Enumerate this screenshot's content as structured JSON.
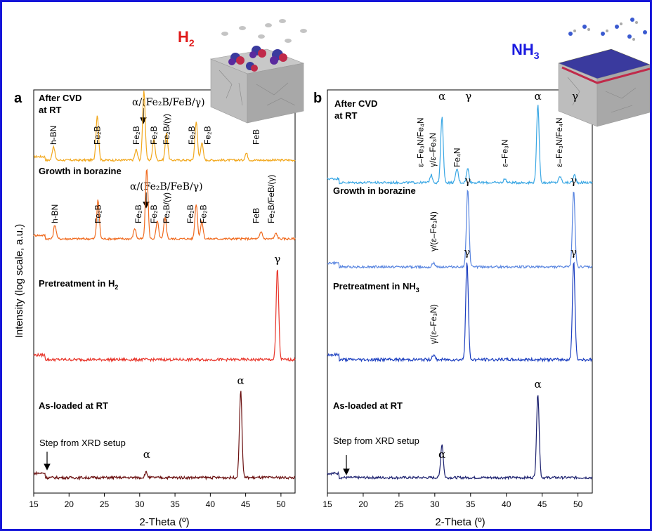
{
  "panels": [
    {
      "letter": "a",
      "gas_main": "H",
      "gas_sub": "2",
      "gas_color": "#e01a1a",
      "x_axis_label": "2-Theta (º)",
      "traces": [
        {
          "label": "After CVD",
          "label2": "at RT"
        },
        {
          "label": "Growth in borazine"
        },
        {
          "label_main": "Pretreatment in H",
          "label_sub": "2"
        },
        {
          "label": "As-loaded at RT"
        }
      ],
      "step_note": "Step from XRD setup",
      "mixed_label_1": "α/(Fe₂B/FeB/γ)",
      "mixed_label_2": "α/(Fe₂B/FeB/γ)"
    },
    {
      "letter": "b",
      "gas_main": "NH",
      "gas_sub": "3",
      "gas_color": "#1a1ae0",
      "x_axis_label": "2-Theta (º)",
      "traces": [
        {
          "label": "After CVD",
          "label2": "at RT"
        },
        {
          "label": "Growth in borazine"
        },
        {
          "label_main": "Pretreatment in NH",
          "label_sub": "3"
        },
        {
          "label": "As-loaded at RT"
        }
      ],
      "step_note": "Step from XRD setup"
    }
  ],
  "shared_y_label": "Intensity (log scale, a.u.)",
  "chart_data": [
    {
      "type": "line",
      "panel": "a",
      "xlabel": "2-Theta (º)",
      "ylabel": "Intensity (log scale, a.u.)",
      "xlim": [
        15,
        52
      ],
      "xticks": [
        15,
        20,
        25,
        30,
        35,
        40,
        45,
        50
      ],
      "y_scale": "log",
      "series": [
        {
          "name": "After CVD at RT",
          "color": "#f2a81d",
          "peaks": [
            [
              17.8,
              0.2
            ],
            [
              24.0,
              0.65
            ],
            [
              29.5,
              0.15
            ],
            [
              30.6,
              1.0
            ],
            [
              32.0,
              0.3
            ],
            [
              33.8,
              0.4
            ],
            [
              38.0,
              0.55
            ],
            [
              38.8,
              0.25
            ],
            [
              45.1,
              0.1
            ]
          ],
          "peak_labels": [
            {
              "x": 17.8,
              "text": "h-BN"
            },
            {
              "x": 24.0,
              "text": "Fe₂B"
            },
            {
              "x": 29.5,
              "text": "Fe₂B"
            },
            {
              "x": 32.0,
              "text": "Fe₂B"
            },
            {
              "x": 33.8,
              "text": "Fe₂B/(γ)"
            },
            {
              "x": 37.4,
              "text": "Fe₂B"
            },
            {
              "x": 39.6,
              "text": "Fe₂B"
            },
            {
              "x": 46.5,
              "text": "FeB"
            }
          ]
        },
        {
          "name": "Growth in borazine",
          "color": "#f06a1e",
          "peaks": [
            [
              18.0,
              0.2
            ],
            [
              24.1,
              0.55
            ],
            [
              29.3,
              0.15
            ],
            [
              31.0,
              1.0
            ],
            [
              32.5,
              0.25
            ],
            [
              33.6,
              0.3
            ],
            [
              38.0,
              0.5
            ],
            [
              38.8,
              0.25
            ],
            [
              47.2,
              0.1
            ],
            [
              49.3,
              0.08
            ]
          ],
          "peak_labels": [
            {
              "x": 18.0,
              "text": "h-BN"
            },
            {
              "x": 24.1,
              "text": "Fe₂B"
            },
            {
              "x": 29.8,
              "text": "Fe₂B"
            },
            {
              "x": 32.0,
              "text": "Fe₂B"
            },
            {
              "x": 33.8,
              "text": "Fe₂B/(γ)"
            },
            {
              "x": 37.2,
              "text": "Fe₂B"
            },
            {
              "x": 39.0,
              "text": "Fe₂B"
            },
            {
              "x": 46.5,
              "text": "FeB"
            },
            {
              "x": 48.6,
              "text": "Fe₂B/FeB/(γ)"
            }
          ]
        },
        {
          "name": "Pretreatment in H2",
          "color": "#e8352a",
          "peaks": [
            [
              49.5,
              1.0
            ]
          ],
          "peak_labels": [
            {
              "x": 49.5,
              "text": "γ"
            }
          ]
        },
        {
          "name": "As-loaded at RT",
          "color": "#6b1010",
          "peaks": [
            [
              30.9,
              0.06
            ],
            [
              44.3,
              1.0
            ]
          ],
          "peak_labels": [
            {
              "x": 31.0,
              "text": "α"
            },
            {
              "x": 44.3,
              "text": "α"
            }
          ]
        }
      ]
    },
    {
      "type": "line",
      "panel": "b",
      "xlabel": "2-Theta (º)",
      "ylabel": "Intensity (log scale, a.u.)",
      "xlim": [
        15,
        52
      ],
      "xticks": [
        15,
        20,
        25,
        30,
        35,
        40,
        45,
        50
      ],
      "y_scale": "log",
      "series": [
        {
          "name": "After CVD at RT",
          "color": "#3aa7e4",
          "peaks": [
            [
              29.5,
              0.1
            ],
            [
              31.0,
              0.85
            ],
            [
              33.1,
              0.18
            ],
            [
              34.6,
              0.18
            ],
            [
              39.8,
              0.05
            ],
            [
              44.4,
              1.0
            ],
            [
              47.5,
              0.08
            ],
            [
              49.5,
              0.1
            ]
          ],
          "peak_labels": [
            {
              "x": 28.0,
              "text": "ε–Fe₃N/Fe₄N"
            },
            {
              "x": 29.7,
              "text": "γ/ε–Fe₃N"
            },
            {
              "x": 31.0,
              "text": "α"
            },
            {
              "x": 33.1,
              "text": "Fe₄N"
            },
            {
              "x": 34.7,
              "text": "γ"
            },
            {
              "x": 39.8,
              "text": "ε–Fe₃N"
            },
            {
              "x": 44.4,
              "text": "α"
            },
            {
              "x": 47.4,
              "text": "ε–Fe₃N/Fe₄N"
            },
            {
              "x": 49.6,
              "text": "γ"
            }
          ]
        },
        {
          "name": "Growth in borazine",
          "color": "#5a86e0",
          "peaks": [
            [
              29.8,
              0.05
            ],
            [
              34.6,
              1.0
            ],
            [
              49.4,
              1.0
            ]
          ],
          "peak_labels": [
            {
              "x": 29.8,
              "text": "γ/(ε–Fe₃N)"
            },
            {
              "x": 34.6,
              "text": "γ"
            },
            {
              "x": 49.4,
              "text": "γ"
            }
          ]
        },
        {
          "name": "Pretreatment in NH3",
          "color": "#1c3fc0",
          "peaks": [
            [
              29.8,
              0.05
            ],
            [
              34.5,
              1.0
            ],
            [
              49.4,
              1.0
            ]
          ],
          "peak_labels": [
            {
              "x": 29.8,
              "text": "γ/(ε–Fe₃N)"
            },
            {
              "x": 34.5,
              "text": "γ"
            },
            {
              "x": 49.4,
              "text": "γ"
            }
          ]
        },
        {
          "name": "As-loaded at RT",
          "color": "#1a1f6e",
          "peaks": [
            [
              31.0,
              0.4
            ],
            [
              44.4,
              1.0
            ]
          ],
          "peak_labels": [
            {
              "x": 31.0,
              "text": "α"
            },
            {
              "x": 44.4,
              "text": "α"
            }
          ]
        }
      ]
    }
  ]
}
